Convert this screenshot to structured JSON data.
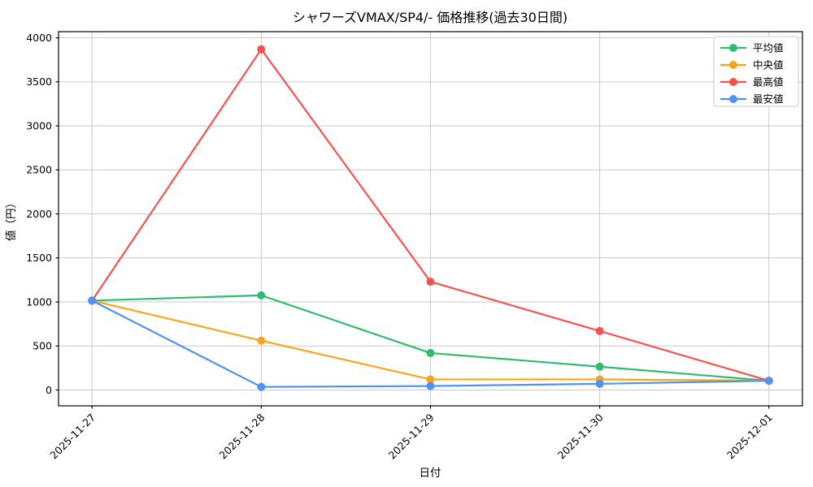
{
  "chart_data": {
    "type": "line",
    "title": "シャワーズVMAX/SP4/- 価格推移(過去30日間)",
    "xlabel": "日付",
    "ylabel": "値（円）",
    "categories": [
      "2025-11-27",
      "2025-11-28",
      "2025-11-29",
      "2025-11-30",
      "2025-12-01"
    ],
    "series": [
      {
        "key": "average",
        "name": "平均値",
        "color": "#2ebd6f",
        "values": [
          1015,
          1075,
          420,
          265,
          105
        ]
      },
      {
        "key": "median",
        "name": "中央値",
        "color": "#faa41a",
        "values": [
          1015,
          560,
          120,
          120,
          105
        ]
      },
      {
        "key": "max",
        "name": "最高値",
        "color": "#f5524e",
        "values": [
          1015,
          3870,
          1230,
          670,
          105
        ]
      },
      {
        "key": "min",
        "name": "最安値",
        "color": "#4d93f5",
        "values": [
          1015,
          35,
          45,
          70,
          105
        ]
      }
    ],
    "yticks": [
      0,
      500,
      1000,
      1500,
      2000,
      2500,
      3000,
      3500,
      4000
    ],
    "ylim": [
      -180,
      4070
    ],
    "grid": true,
    "legend_position": "upper right",
    "x_tick_rotation": 45
  },
  "colors": {
    "background": "#ffffff",
    "grid": "#c9c9c9",
    "axis": "#000000",
    "legend_border": "#cccccc",
    "legend_background": "#ffffff"
  }
}
